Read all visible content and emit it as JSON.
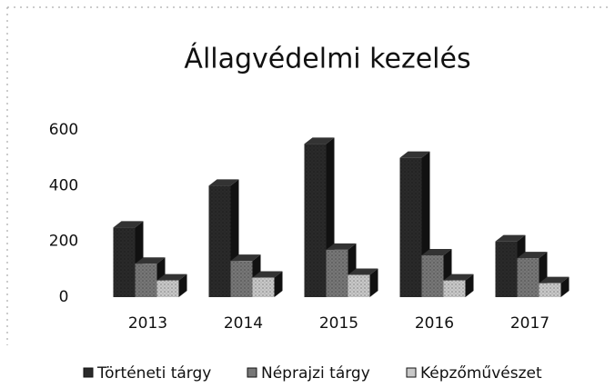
{
  "chart_data": {
    "type": "bar3d",
    "title": "Állagvédelmi kezelés",
    "categories": [
      "2013",
      "2014",
      "2015",
      "2016",
      "2017"
    ],
    "series": [
      {
        "name": "Történeti tárgy",
        "color": "#2a2a2a",
        "values": [
          250,
          400,
          550,
          500,
          200
        ]
      },
      {
        "name": "Néprajzi tárgy",
        "color": "#777777",
        "values": [
          120,
          130,
          170,
          150,
          140
        ]
      },
      {
        "name": "Képzőművészet",
        "color": "#c8c8c8",
        "values": [
          60,
          70,
          80,
          60,
          50
        ]
      }
    ],
    "ylim": [
      0,
      600
    ],
    "yticks": [
      0,
      200,
      400,
      600
    ],
    "grid": false,
    "legend": "bottom"
  }
}
